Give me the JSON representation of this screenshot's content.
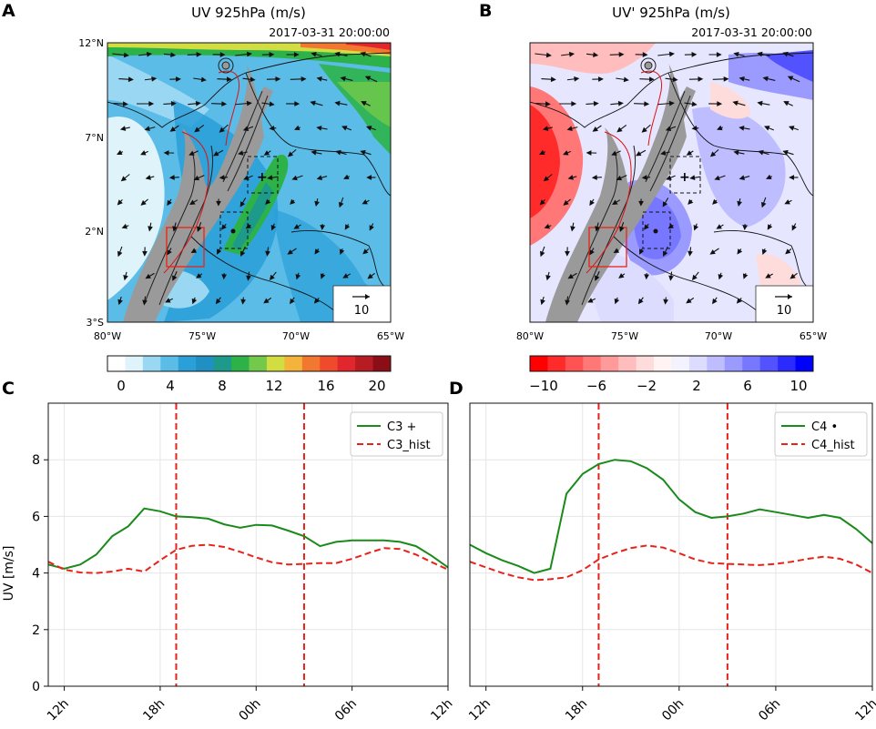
{
  "figure": {
    "panels": {
      "A": {
        "letter": "A",
        "title": "UV 925hPa (m/s)",
        "timestamp": "2017-03-31 20:00:00",
        "lat_ticks": [
          "12°N",
          "7°N",
          "2°N",
          "3°S"
        ],
        "lon_ticks": [
          "80°W",
          "75°W",
          "70°W",
          "65°W"
        ],
        "ref_vector_label": "10",
        "colorbar": {
          "ticks": [
            "0",
            "4",
            "8",
            "12",
            "16",
            "20"
          ],
          "colors": [
            "#ffffff",
            "#dff3fb",
            "#9ad7f2",
            "#5bbde7",
            "#2a9fd8",
            "#1f8fc4",
            "#1d9a8a",
            "#2db24a",
            "#72c94a",
            "#d2dd41",
            "#f4b33a",
            "#f2782f",
            "#ef4a2b",
            "#e2262d",
            "#b61c22",
            "#8b0e16"
          ]
        }
      },
      "B": {
        "letter": "B",
        "title": "UV' 925hPa (m/s)",
        "timestamp": "2017-03-31 20:00:00",
        "lat_ticks": [
          "12°N",
          "7°N",
          "2°N",
          "3°S"
        ],
        "lon_ticks": [
          "80°W",
          "75°W",
          "70°W",
          "65°W"
        ],
        "ref_vector_label": "10",
        "colorbar": {
          "ticks": [
            "−10",
            "−6",
            "−2",
            "2",
            "6",
            "10"
          ],
          "colors": [
            "#ff0000",
            "#ff2b2b",
            "#ff5252",
            "#ff7777",
            "#ff9a9a",
            "#ffbdbd",
            "#ffdcdc",
            "#fff3f3",
            "#f3f3ff",
            "#dcdcff",
            "#bdbdff",
            "#9a9aff",
            "#7777ff",
            "#5252ff",
            "#2b2bff",
            "#0000ff"
          ]
        }
      },
      "C": {
        "letter": "C",
        "ylabel": "UV [m/s]"
      },
      "D": {
        "letter": "D",
        "ylabel": "UV [m/s]"
      }
    }
  },
  "chart_data": [
    {
      "panel": "C",
      "type": "line",
      "title": "",
      "xlabel": "",
      "ylabel": "UV [m/s]",
      "x_hours": [
        0,
        1,
        2,
        3,
        4,
        5,
        6,
        7,
        8,
        9,
        10,
        11,
        12,
        13,
        14,
        15,
        16,
        17,
        18,
        19,
        20,
        21,
        22,
        23,
        24,
        25
      ],
      "x_tick_positions": [
        1,
        7,
        13,
        19,
        25
      ],
      "x_tick_labels": [
        "12h",
        "18h",
        "00h",
        "06h",
        "12h"
      ],
      "xlim": [
        0,
        25
      ],
      "ylim": [
        0,
        10
      ],
      "y_ticks": [
        0,
        2,
        4,
        6,
        8
      ],
      "vlines": [
        8,
        16
      ],
      "series": [
        {
          "name": "C3 +",
          "legend": "C3 +",
          "color": "#1a8a1a",
          "style": "solid",
          "values": [
            4.3,
            4.15,
            4.3,
            4.65,
            5.3,
            5.65,
            6.28,
            6.18,
            6.0,
            5.97,
            5.92,
            5.72,
            5.6,
            5.7,
            5.68,
            5.5,
            5.3,
            4.95,
            5.1,
            5.15,
            5.15,
            5.15,
            5.1,
            4.95,
            4.6,
            4.2
          ]
        },
        {
          "name": "C3_hist",
          "legend": "C3_hist",
          "color": "#e8221a",
          "style": "dashed",
          "values": [
            4.4,
            4.12,
            4.02,
            4.0,
            4.05,
            4.15,
            4.05,
            4.45,
            4.82,
            4.96,
            5.0,
            4.92,
            4.75,
            4.55,
            4.38,
            4.3,
            4.32,
            4.35,
            4.35,
            4.5,
            4.7,
            4.88,
            4.85,
            4.65,
            4.38,
            4.12
          ]
        }
      ]
    },
    {
      "panel": "D",
      "type": "line",
      "title": "",
      "xlabel": "",
      "ylabel": "UV [m/s]",
      "x_hours": [
        0,
        1,
        2,
        3,
        4,
        5,
        6,
        7,
        8,
        9,
        10,
        11,
        12,
        13,
        14,
        15,
        16,
        17,
        18,
        19,
        20,
        21,
        22,
        23,
        24,
        25
      ],
      "x_tick_positions": [
        1,
        7,
        13,
        19,
        25
      ],
      "x_tick_labels": [
        "12h",
        "18h",
        "00h",
        "06h",
        "12h"
      ],
      "xlim": [
        0,
        25
      ],
      "ylim": [
        0,
        10
      ],
      "y_ticks": [
        0,
        2,
        4,
        6,
        8
      ],
      "vlines": [
        8,
        16
      ],
      "series": [
        {
          "name": "C4 •",
          "legend": "C4 •",
          "color": "#1a8a1a",
          "style": "solid",
          "values": [
            5.0,
            4.7,
            4.45,
            4.25,
            4.0,
            4.15,
            6.8,
            7.5,
            7.85,
            8.0,
            7.95,
            7.7,
            7.3,
            6.6,
            6.15,
            5.95,
            6.0,
            6.1,
            6.25,
            6.15,
            6.05,
            5.95,
            6.05,
            5.95,
            5.55,
            5.05
          ]
        },
        {
          "name": "C4_hist",
          "legend": "C4_hist",
          "color": "#e8221a",
          "style": "dashed",
          "values": [
            4.4,
            4.2,
            4.0,
            3.85,
            3.75,
            3.78,
            3.85,
            4.1,
            4.48,
            4.7,
            4.88,
            4.97,
            4.9,
            4.7,
            4.48,
            4.35,
            4.32,
            4.3,
            4.28,
            4.32,
            4.4,
            4.5,
            4.58,
            4.5,
            4.3,
            4.0
          ]
        }
      ]
    }
  ]
}
